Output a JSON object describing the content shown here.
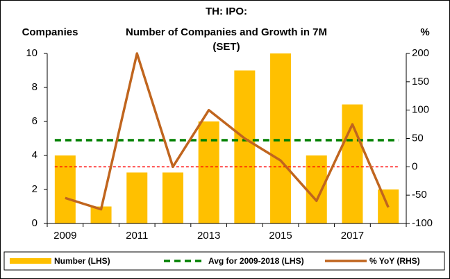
{
  "chart_data": {
    "type": "combo",
    "title": [
      "TH: IPO:",
      "Number of Companies and Growth in 7M",
      "(SET)"
    ],
    "y_label": "Companies",
    "y2_label": "%",
    "categories": [
      "2009",
      null,
      "2011",
      null,
      "2013",
      null,
      "2015",
      null,
      "2017",
      null
    ],
    "ylim": [
      0,
      10
    ],
    "yticks": [
      0,
      2,
      4,
      6,
      8,
      10
    ],
    "y2lim": [
      -100,
      200
    ],
    "y2ticks": [
      -100,
      -50,
      0,
      50,
      100,
      150,
      200
    ],
    "series": [
      {
        "name": "Number (LHS)",
        "type": "bar",
        "color": "#ffc000",
        "values": [
          4,
          1,
          3,
          3,
          6,
          9,
          10,
          4,
          7,
          2
        ]
      },
      {
        "name": "Avg for 2009-2018 (LHS)",
        "type": "hline",
        "color": "#008000",
        "value": 4.9
      },
      {
        "name": "% YoY (RHS)",
        "type": "line",
        "axis": "y2",
        "color": "#c0651e",
        "values": [
          -55,
          -75,
          200,
          0,
          100,
          50,
          11.1,
          -60,
          75,
          -71.4
        ]
      }
    ],
    "reference_lines": [
      {
        "axis": "y2",
        "value": 0,
        "color": "#ff0000"
      }
    ]
  }
}
